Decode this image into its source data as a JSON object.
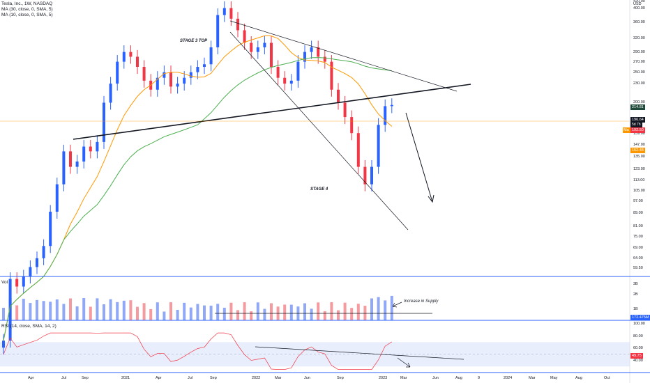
{
  "legend": {
    "symbol": "Tesla, Inc., 1W, NASDAQ",
    "ma1": "MA (30, close, 0, SMA, 5)",
    "ma2": "MA (10, close, 0, SMA, 5)",
    "currency": "USD"
  },
  "annotations": {
    "stage3": "STAGE 3 TOP",
    "stage4": "STAGE 4",
    "supply": "Increase in Supply"
  },
  "panes": {
    "vol_title": "Vol",
    "rsi_title": "RSI (14, close, SMA, 14, 2)"
  },
  "price_tags": {
    "ma30": "214.81",
    "last": "196.64",
    "last_sub": "5d 7h",
    "ma10": "152.48",
    "ma10_label": "Ma",
    "ma10b": "192.50",
    "vol": "172.475M",
    "rsi": "49.75"
  },
  "colors": {
    "up": "#2962ff",
    "down": "#f23645",
    "vol_up": "#90a8f5",
    "vol_down": "#f59a9f",
    "ma10": "#ff9800",
    "ma30": "#4caf50",
    "rsi": "#f23645",
    "rsi_band": "#e8eefc",
    "axis": "#2962ff"
  },
  "chart_data": [
    {
      "type": "candlestick",
      "title": "Tesla, Inc., 1W, NASDAQ",
      "ylabel": "USD",
      "yscale": "log",
      "ylim": [
        56,
        420
      ],
      "y_ticks": [
        "420.00",
        "400.00",
        "360.00",
        "320.00",
        "290.00",
        "270.00",
        "250.00",
        "230.00",
        "200.00",
        "175.00",
        "159.00",
        "147.00",
        "135.00",
        "123.00",
        "113.00",
        "105.00",
        "97.00",
        "89.00",
        "81.00",
        "75.00",
        "69.00",
        "64.00",
        "59.50"
      ],
      "x_ticks": [
        "Apr",
        "Jul",
        "Sep",
        "2021",
        "Apr",
        "Jul",
        "Sep",
        "2022",
        "Mar",
        "Jun",
        "Sep",
        "2023",
        "Mar",
        "Jun",
        "Aug",
        "9",
        "2024",
        "Mar",
        "May",
        "Aug",
        "Oct"
      ],
      "weekly_close_approx": [
        35,
        55,
        52,
        56,
        60,
        64,
        70,
        90,
        110,
        140,
        125,
        130,
        145,
        140,
        150,
        200,
        230,
        270,
        290,
        280,
        260,
        235,
        220,
        240,
        250,
        225,
        230,
        240,
        250,
        260,
        265,
        300,
        380,
        400,
        370,
        340,
        310,
        290,
        300,
        310,
        260,
        240,
        230,
        235,
        270,
        290,
        300,
        280,
        270,
        220,
        200,
        180,
        160,
        125,
        110,
        125,
        170,
        195,
        196.64
      ],
      "series": [
        {
          "name": "MA (10, close, 0, SMA, 5)",
          "last": 152.48
        },
        {
          "name": "MA (30, close, 0, SMA, 5)",
          "last": 214.81
        }
      ],
      "last_close": 196.64,
      "annotations": [
        "STAGE 3 TOP",
        "STAGE 4"
      ]
    },
    {
      "type": "bar",
      "title": "Vol",
      "y_ticks": [
        "3B",
        "2B",
        "1B"
      ],
      "last": "172.475M",
      "annotations": [
        "Increase in Supply"
      ]
    },
    {
      "type": "line",
      "title": "RSI (14, close, SMA, 14, 2)",
      "ylim": [
        20,
        100
      ],
      "y_ticks": [
        "100.00",
        "80.00",
        "60.00",
        "40.00"
      ],
      "band": [
        30,
        70
      ],
      "last": 49.75
    }
  ]
}
